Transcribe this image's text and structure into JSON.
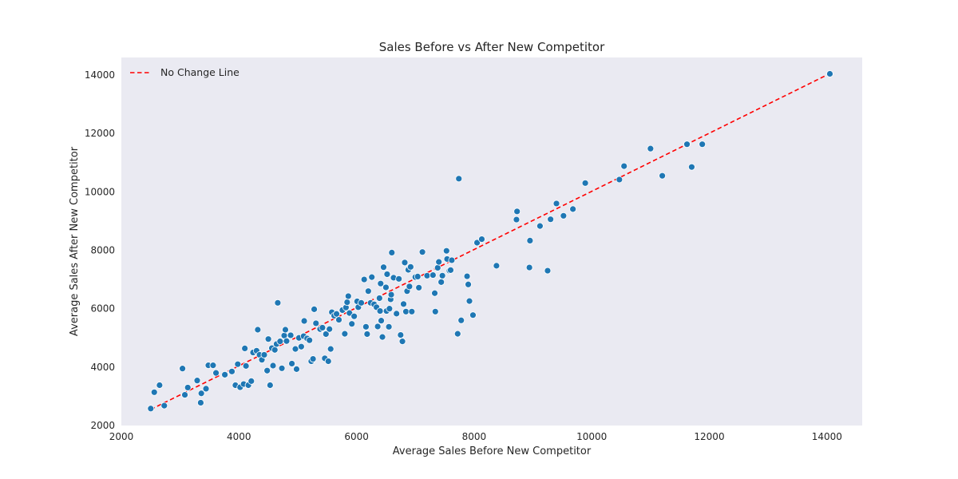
{
  "chart_data": {
    "type": "scatter",
    "title": "Sales Before vs After New Competitor",
    "xlabel": "Average Sales Before New Competitor",
    "ylabel": "Average Sales After New Competitor",
    "xlim": [
      2000,
      14600
    ],
    "ylim": [
      2000,
      14600
    ],
    "xticks": [
      2000,
      4000,
      6000,
      8000,
      10000,
      12000,
      14000
    ],
    "yticks": [
      2000,
      4000,
      6000,
      8000,
      10000,
      12000,
      14000
    ],
    "x_tick_labels": [
      "2000",
      "4000",
      "6000",
      "8000",
      "10000",
      "12000",
      "14000"
    ],
    "y_tick_labels": [
      "2000",
      "4000",
      "6000",
      "8000",
      "10000",
      "12000",
      "14000"
    ],
    "grid": false,
    "legend_position": "top-left",
    "background_color": "#eaeaf2",
    "point_color": "#1f77b4",
    "reference_line": {
      "name": "No Change Line",
      "x": [
        2500,
        14050
      ],
      "y": [
        2550,
        14050
      ],
      "color": "#ff0000",
      "style": "dashed"
    },
    "series": [
      {
        "points": [
          [
            2500,
            2580
          ],
          [
            2560,
            3140
          ],
          [
            2650,
            3380
          ],
          [
            2730,
            2680
          ],
          [
            3040,
            3950
          ],
          [
            3080,
            3050
          ],
          [
            3130,
            3300
          ],
          [
            3290,
            3540
          ],
          [
            3350,
            2780
          ],
          [
            3360,
            3100
          ],
          [
            3440,
            3260
          ],
          [
            3480,
            4060
          ],
          [
            3560,
            4060
          ],
          [
            3610,
            3800
          ],
          [
            3760,
            3740
          ],
          [
            3880,
            3850
          ],
          [
            3940,
            3380
          ],
          [
            3980,
            4100
          ],
          [
            4020,
            3310
          ],
          [
            4080,
            3420
          ],
          [
            4120,
            4040
          ],
          [
            4100,
            4640
          ],
          [
            4160,
            3380
          ],
          [
            4210,
            3520
          ],
          [
            4240,
            4500
          ],
          [
            4300,
            4560
          ],
          [
            4320,
            5280
          ],
          [
            4350,
            4420
          ],
          [
            4390,
            4250
          ],
          [
            4430,
            4420
          ],
          [
            4480,
            3880
          ],
          [
            4500,
            4960
          ],
          [
            4530,
            3380
          ],
          [
            4560,
            4650
          ],
          [
            4580,
            4050
          ],
          [
            4610,
            4590
          ],
          [
            4640,
            4790
          ],
          [
            4660,
            6200
          ],
          [
            4700,
            4880
          ],
          [
            4730,
            3960
          ],
          [
            4770,
            5080
          ],
          [
            4790,
            5280
          ],
          [
            4810,
            4890
          ],
          [
            4880,
            5090
          ],
          [
            4900,
            4120
          ],
          [
            4960,
            4620
          ],
          [
            4980,
            3930
          ],
          [
            5020,
            5000
          ],
          [
            5060,
            4700
          ],
          [
            5100,
            5060
          ],
          [
            5110,
            5580
          ],
          [
            5160,
            4980
          ],
          [
            5200,
            4920
          ],
          [
            5230,
            4200
          ],
          [
            5260,
            4280
          ],
          [
            5280,
            5980
          ],
          [
            5310,
            5500
          ],
          [
            5380,
            5300
          ],
          [
            5420,
            5350
          ],
          [
            5460,
            4300
          ],
          [
            5480,
            5130
          ],
          [
            5520,
            4200
          ],
          [
            5540,
            5300
          ],
          [
            5560,
            4620
          ],
          [
            5580,
            5880
          ],
          [
            5620,
            5760
          ],
          [
            5660,
            5820
          ],
          [
            5700,
            5620
          ],
          [
            5760,
            5950
          ],
          [
            5800,
            5140
          ],
          [
            5820,
            6040
          ],
          [
            5840,
            6220
          ],
          [
            5860,
            6430
          ],
          [
            5880,
            5850
          ],
          [
            5920,
            5480
          ],
          [
            5960,
            5740
          ],
          [
            6010,
            6250
          ],
          [
            6030,
            6050
          ],
          [
            6080,
            6200
          ],
          [
            6130,
            7000
          ],
          [
            6160,
            5380
          ],
          [
            6180,
            5130
          ],
          [
            6200,
            6600
          ],
          [
            6240,
            6200
          ],
          [
            6260,
            7080
          ],
          [
            6300,
            6150
          ],
          [
            6340,
            6050
          ],
          [
            6360,
            5390
          ],
          [
            6390,
            6360
          ],
          [
            6400,
            5920
          ],
          [
            6410,
            6860
          ],
          [
            6420,
            5590
          ],
          [
            6440,
            5030
          ],
          [
            6460,
            7420
          ],
          [
            6500,
            6730
          ],
          [
            6510,
            5920
          ],
          [
            6520,
            7180
          ],
          [
            6550,
            5380
          ],
          [
            6560,
            6000
          ],
          [
            6580,
            6320
          ],
          [
            6590,
            6480
          ],
          [
            6600,
            7920
          ],
          [
            6630,
            7060
          ],
          [
            6680,
            5830
          ],
          [
            6720,
            7020
          ],
          [
            6750,
            5100
          ],
          [
            6780,
            4880
          ],
          [
            6800,
            6160
          ],
          [
            6820,
            7580
          ],
          [
            6840,
            5900
          ],
          [
            6860,
            6600
          ],
          [
            6880,
            7330
          ],
          [
            6900,
            6760
          ],
          [
            6920,
            7430
          ],
          [
            6940,
            5900
          ],
          [
            7000,
            7080
          ],
          [
            7040,
            7100
          ],
          [
            7060,
            6720
          ],
          [
            7120,
            7940
          ],
          [
            7200,
            7130
          ],
          [
            7300,
            7150
          ],
          [
            7330,
            6530
          ],
          [
            7340,
            5900
          ],
          [
            7380,
            7400
          ],
          [
            7400,
            7600
          ],
          [
            7440,
            6910
          ],
          [
            7460,
            7130
          ],
          [
            7530,
            7980
          ],
          [
            7540,
            7700
          ],
          [
            7580,
            7300
          ],
          [
            7600,
            7320
          ],
          [
            7620,
            7660
          ],
          [
            7720,
            5140
          ],
          [
            7740,
            10450
          ],
          [
            7780,
            5600
          ],
          [
            7880,
            7110
          ],
          [
            7900,
            6830
          ],
          [
            7920,
            6260
          ],
          [
            7980,
            5780
          ],
          [
            8050,
            8260
          ],
          [
            8130,
            8380
          ],
          [
            8380,
            7470
          ],
          [
            8720,
            9050
          ],
          [
            8730,
            9330
          ],
          [
            8940,
            7410
          ],
          [
            8950,
            8330
          ],
          [
            9120,
            8830
          ],
          [
            9250,
            7300
          ],
          [
            9300,
            9060
          ],
          [
            9400,
            9600
          ],
          [
            9520,
            9180
          ],
          [
            9680,
            9410
          ],
          [
            9890,
            10300
          ],
          [
            10470,
            10420
          ],
          [
            10550,
            10880
          ],
          [
            11000,
            11480
          ],
          [
            11200,
            10550
          ],
          [
            11620,
            11630
          ],
          [
            11700,
            10850
          ],
          [
            11880,
            11630
          ],
          [
            14050,
            14040
          ]
        ]
      }
    ]
  }
}
